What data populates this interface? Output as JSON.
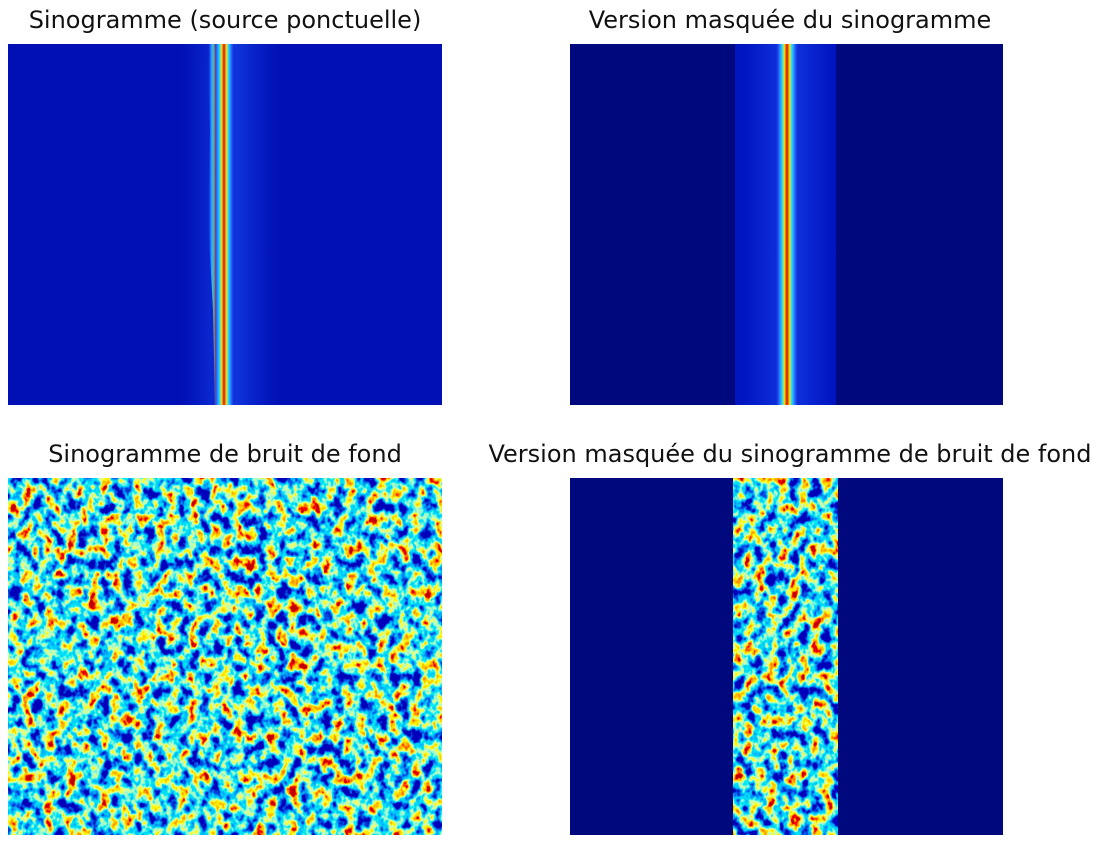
{
  "panels": [
    {
      "title": "Sinogramme (source ponctuelle)"
    },
    {
      "title": "Version masquée du sinogramme"
    },
    {
      "title": "Sinogramme de bruit de fond"
    },
    {
      "title": "Version masquée du sinogramme de bruit de fond"
    }
  ]
}
